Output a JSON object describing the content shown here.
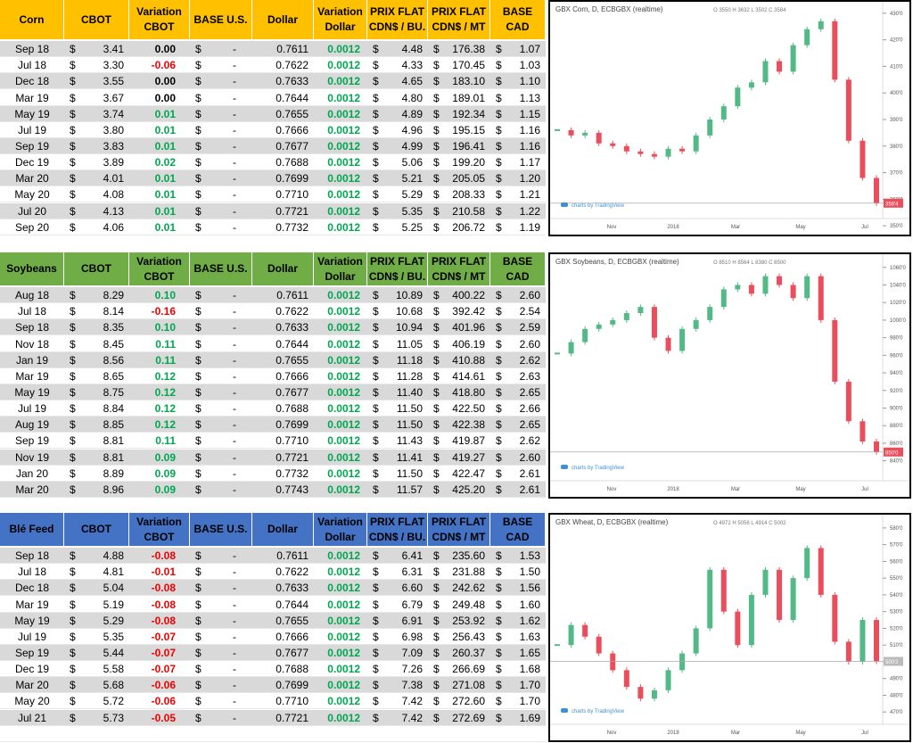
{
  "panels": [
    {
      "header": [
        [
          "Corn"
        ],
        [
          "CBOT"
        ],
        [
          "Variation",
          "CBOT"
        ],
        [
          "BASE U.S."
        ],
        [
          "Dollar"
        ],
        [
          "Variation",
          "Dollar"
        ],
        [
          "PRIX FLAT",
          "CDN$ / BU."
        ],
        [
          "PRIX FLAT",
          "CDN$ / MT"
        ],
        [
          "BASE CAD"
        ]
      ],
      "header_color": "#ffc000",
      "currency": "$",
      "rows": [
        [
          "Sep 18",
          "3.41",
          "0.00",
          "-",
          "0.7611",
          "0.0012",
          "4.48",
          "176.38",
          "1.07"
        ],
        [
          "Jul 18",
          "3.30",
          "-0.06",
          "-",
          "0.7622",
          "0.0012",
          "4.33",
          "170.45",
          "1.03"
        ],
        [
          "Dec 18",
          "3.55",
          "0.00",
          "-",
          "0.7633",
          "0.0012",
          "4.65",
          "183.10",
          "1.10"
        ],
        [
          "Mar 19",
          "3.67",
          "0.00",
          "-",
          "0.7644",
          "0.0012",
          "4.80",
          "189.01",
          "1.13"
        ],
        [
          "May 19",
          "3.74",
          "0.01",
          "-",
          "0.7655",
          "0.0012",
          "4.89",
          "192.34",
          "1.15"
        ],
        [
          "Jul 19",
          "3.80",
          "0.01",
          "-",
          "0.7666",
          "0.0012",
          "4.96",
          "195.15",
          "1.16"
        ],
        [
          "Sep 19",
          "3.83",
          "0.01",
          "-",
          "0.7677",
          "0.0012",
          "4.99",
          "196.41",
          "1.16"
        ],
        [
          "Dec 19",
          "3.89",
          "0.02",
          "-",
          "0.7688",
          "0.0012",
          "5.06",
          "199.20",
          "1.17"
        ],
        [
          "Mar 20",
          "4.01",
          "0.01",
          "-",
          "0.7699",
          "0.0012",
          "5.21",
          "205.05",
          "1.20"
        ],
        [
          "May 20",
          "4.08",
          "0.01",
          "-",
          "0.7710",
          "0.0012",
          "5.29",
          "208.33",
          "1.21"
        ],
        [
          "Jul 20",
          "4.13",
          "0.01",
          "-",
          "0.7721",
          "0.0012",
          "5.35",
          "210.58",
          "1.22"
        ],
        [
          "Sep 20",
          "4.06",
          "0.01",
          "-",
          "0.7732",
          "0.0012",
          "5.25",
          "206.72",
          "1.19"
        ]
      ],
      "chart": {
        "type": "candlestick",
        "title": "GBX Corn, D, ECBGBX (realtime)",
        "ohlc": "O 3550 H 3632 L 3502 C 3584",
        "values": [
          386,
          384,
          385,
          381,
          380,
          378,
          377,
          376,
          379,
          378,
          384,
          390,
          395,
          402,
          404,
          412,
          408,
          418,
          424,
          427,
          405,
          382,
          368,
          358.5
        ],
        "ylim": [
          346,
          435
        ],
        "yticks": [
          {
            "value": 430,
            "label": "430'0"
          },
          {
            "value": 420,
            "label": "420'0"
          },
          {
            "value": 410,
            "label": "410'0"
          },
          {
            "value": 400,
            "label": "400'0"
          },
          {
            "value": 390,
            "label": "390'0"
          },
          {
            "value": 380,
            "label": "380'0"
          },
          {
            "value": 370,
            "label": "370'0"
          },
          {
            "value": 360,
            "label": "360'0"
          },
          {
            "value": 350,
            "label": "350'0"
          }
        ],
        "last": {
          "value": 358.5,
          "label": "358'4"
        },
        "xlabels": [
          "Nov",
          "2018",
          "Mar",
          "May",
          "Jul"
        ],
        "credit": "charts by TradingView"
      }
    },
    {
      "header": [
        [
          "Soybeans"
        ],
        [
          "CBOT"
        ],
        [
          "Variation",
          "CBOT"
        ],
        [
          "BASE U.S."
        ],
        [
          "Dollar"
        ],
        [
          "Variation",
          "Dollar"
        ],
        [
          "PRIX FLAT",
          "CDN$ / BU."
        ],
        [
          "PRIX FLAT",
          "CDN$ / MT"
        ],
        [
          "BASE CAD"
        ]
      ],
      "header_color": "#70ad47",
      "currency": "$",
      "rows": [
        [
          "Aug 18",
          "8.29",
          "0.10",
          "-",
          "0.7611",
          "0.0012",
          "10.89",
          "400.22",
          "2.60"
        ],
        [
          "Jul 18",
          "8.14",
          "-0.16",
          "-",
          "0.7622",
          "0.0012",
          "10.68",
          "392.42",
          "2.54"
        ],
        [
          "Sep 18",
          "8.35",
          "0.10",
          "-",
          "0.7633",
          "0.0012",
          "10.94",
          "401.96",
          "2.59"
        ],
        [
          "Nov 18",
          "8.45",
          "0.11",
          "-",
          "0.7644",
          "0.0012",
          "11.05",
          "406.19",
          "2.60"
        ],
        [
          "Jan 19",
          "8.56",
          "0.11",
          "-",
          "0.7655",
          "0.0012",
          "11.18",
          "410.88",
          "2.62"
        ],
        [
          "Mar 19",
          "8.65",
          "0.12",
          "-",
          "0.7666",
          "0.0012",
          "11.28",
          "414.61",
          "2.63"
        ],
        [
          "May 19",
          "8.75",
          "0.12",
          "-",
          "0.7677",
          "0.0012",
          "11.40",
          "418.80",
          "2.65"
        ],
        [
          "Jul 19",
          "8.84",
          "0.12",
          "-",
          "0.7688",
          "0.0012",
          "11.50",
          "422.50",
          "2.66"
        ],
        [
          "Aug 19",
          "8.85",
          "0.12",
          "-",
          "0.7699",
          "0.0012",
          "11.50",
          "422.38",
          "2.65"
        ],
        [
          "Sep 19",
          "8.81",
          "0.11",
          "-",
          "0.7710",
          "0.0012",
          "11.43",
          "419.87",
          "2.62"
        ],
        [
          "Nov 19",
          "8.81",
          "0.09",
          "-",
          "0.7721",
          "0.0012",
          "11.41",
          "419.27",
          "2.60"
        ],
        [
          "Jan 20",
          "8.89",
          "0.09",
          "-",
          "0.7732",
          "0.0012",
          "11.50",
          "422.47",
          "2.61"
        ],
        [
          "Mar 20",
          "8.96",
          "0.09",
          "-",
          "0.7743",
          "0.0012",
          "11.57",
          "425.20",
          "2.61"
        ]
      ],
      "chart": {
        "type": "candlestick",
        "title": "GBX Soybeans, D, ECBGBX (realtime)",
        "ohlc": "O 8510 H 8564 L 8380 C 8500",
        "values": [
          962,
          975,
          990,
          995,
          1000,
          1008,
          1015,
          980,
          965,
          990,
          1000,
          1015,
          1035,
          1040,
          1030,
          1050,
          1040,
          1025,
          1050,
          1000,
          930,
          885,
          862,
          850
        ],
        "ylim": [
          797,
          1077
        ],
        "yticks": [
          {
            "value": 1060,
            "label": "1060'0"
          },
          {
            "value": 1040,
            "label": "1040'0"
          },
          {
            "value": 1020,
            "label": "1020'0"
          },
          {
            "value": 1000,
            "label": "1000'0"
          },
          {
            "value": 980,
            "label": "980'0"
          },
          {
            "value": 960,
            "label": "960'0"
          },
          {
            "value": 940,
            "label": "940'0"
          },
          {
            "value": 920,
            "label": "920'0"
          },
          {
            "value": 900,
            "label": "900'0"
          },
          {
            "value": 880,
            "label": "880'0"
          },
          {
            "value": 860,
            "label": "860'0"
          },
          {
            "value": 840,
            "label": "840'0"
          }
        ],
        "last": {
          "value": 850,
          "label": "850'0"
        },
        "xlabels": [
          "Nov",
          "2018",
          "Mar",
          "May",
          "Jul"
        ],
        "credit": "charts by TradingView"
      }
    },
    {
      "header": [
        [
          "Blé Feed"
        ],
        [
          "CBOT"
        ],
        [
          "Variation",
          "CBOT"
        ],
        [
          "BASE U.S."
        ],
        [
          "Dollar"
        ],
        [
          "Variation",
          "Dollar"
        ],
        [
          "PRIX FLAT",
          "CDN$ / BU."
        ],
        [
          "PRIX FLAT",
          "CDN$ / MT"
        ],
        [
          "BASE CAD"
        ]
      ],
      "header_color": "#4472c4",
      "currency": "$",
      "rows": [
        [
          "Sep 18",
          "4.88",
          "-0.08",
          "-",
          "0.7611",
          "0.0012",
          "6.41",
          "235.60",
          "1.53"
        ],
        [
          "Jul 18",
          "4.81",
          "-0.01",
          "-",
          "0.7622",
          "0.0012",
          "6.31",
          "231.88",
          "1.50"
        ],
        [
          "Dec 18",
          "5.04",
          "-0.08",
          "-",
          "0.7633",
          "0.0012",
          "6.60",
          "242.62",
          "1.56"
        ],
        [
          "Mar 19",
          "5.19",
          "-0.08",
          "-",
          "0.7644",
          "0.0012",
          "6.79",
          "249.48",
          "1.60"
        ],
        [
          "May 19",
          "5.29",
          "-0.08",
          "-",
          "0.7655",
          "0.0012",
          "6.91",
          "253.92",
          "1.62"
        ],
        [
          "Jul 19",
          "5.35",
          "-0.07",
          "-",
          "0.7666",
          "0.0012",
          "6.98",
          "256.43",
          "1.63"
        ],
        [
          "Sep 19",
          "5.44",
          "-0.07",
          "-",
          "0.7677",
          "0.0012",
          "7.09",
          "260.37",
          "1.65"
        ],
        [
          "Dec 19",
          "5.58",
          "-0.07",
          "-",
          "0.7688",
          "0.0012",
          "7.26",
          "266.69",
          "1.68"
        ],
        [
          "Mar 20",
          "5.68",
          "-0.06",
          "-",
          "0.7699",
          "0.0012",
          "7.38",
          "271.08",
          "1.70"
        ],
        [
          "May 20",
          "5.72",
          "-0.06",
          "-",
          "0.7710",
          "0.0012",
          "7.42",
          "272.60",
          "1.70"
        ],
        [
          "Jul 21",
          "5.73",
          "-0.05",
          "-",
          "0.7721",
          "0.0012",
          "7.42",
          "272.69",
          "1.69"
        ]
      ],
      "chart": {
        "type": "candlestick",
        "title": "GBX Wheat, D, ECBGBX (realtime)",
        "ohlc": "O 4972 H 5056 L 4914 C 5002",
        "values": [
          510,
          522,
          515,
          505,
          495,
          485,
          478,
          483,
          495,
          505,
          520,
          555,
          530,
          510,
          540,
          555,
          525,
          550,
          568,
          540,
          512,
          500,
          525,
          500.25
        ],
        "ylim": [
          452,
          589
        ],
        "yticks": [
          {
            "value": 580,
            "label": "580'0"
          },
          {
            "value": 570,
            "label": "570'0"
          },
          {
            "value": 560,
            "label": "560'0"
          },
          {
            "value": 550,
            "label": "550'0"
          },
          {
            "value": 540,
            "label": "540'0"
          },
          {
            "value": 530,
            "label": "530'0"
          },
          {
            "value": 520,
            "label": "520'0"
          },
          {
            "value": 510,
            "label": "510'0"
          },
          {
            "value": 500,
            "label": "500'0"
          },
          {
            "value": 490,
            "label": "490'0"
          },
          {
            "value": 480,
            "label": "480'0"
          },
          {
            "value": 470,
            "label": "470'0"
          }
        ],
        "last": {
          "value": 500.25,
          "label": "500'2"
        },
        "xlabels": [
          "Nov",
          "2018",
          "Mar",
          "May",
          "Jul"
        ],
        "credit": "charts by TradingView"
      }
    }
  ]
}
